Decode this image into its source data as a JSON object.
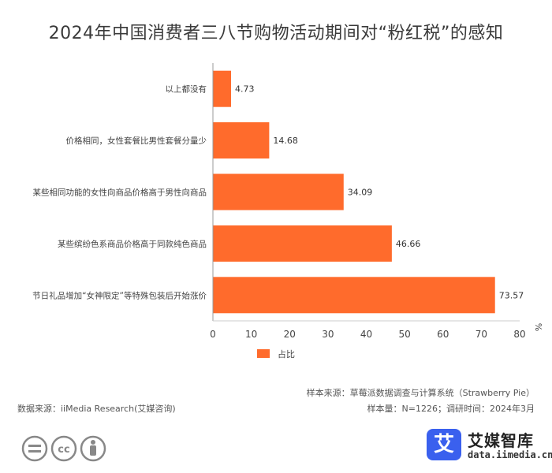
{
  "title": "2024年中国消费者三八节购物活动期间对“粉红税”的感知",
  "chart_data": {
    "type": "bar",
    "orientation": "horizontal",
    "categories": [
      "以上都没有",
      "价格相同，女性套餐比男性套餐分量少",
      "某些相同功能的女性向商品价格高于男性向商品",
      "某些缤纷色系商品价格高于同款纯色商品",
      "节日礼品增加“女神限定”等特殊包装后开始涨价"
    ],
    "series": [
      {
        "name": "占比",
        "values": [
          4.73,
          14.68,
          34.09,
          46.66,
          73.57
        ]
      }
    ],
    "x_ticks": [
      "0",
      "10",
      "20",
      "30",
      "40",
      "50",
      "60",
      "70",
      "80"
    ],
    "xlim": [
      0,
      80
    ],
    "x_unit": "%",
    "legend": {
      "position": "bottom-center",
      "label": "占比"
    },
    "bar_color": "#ff6b2c",
    "grid": false
  },
  "footer": {
    "source_left": "数据来源：iiMedia Research(艾媒咨询)",
    "source_right": "样本来源：草莓派数据调查与计算系统（Strawberry Pie）",
    "sample_info": "样本量：N=1226；调研时间：2024年3月"
  },
  "license_icons": [
    "equals-icon",
    "cc-icon",
    "person-icon"
  ],
  "brand": {
    "logo_char": "艾",
    "name": "艾媒智库",
    "url": "data.iimedia.cn",
    "color": "#3a60ee"
  }
}
